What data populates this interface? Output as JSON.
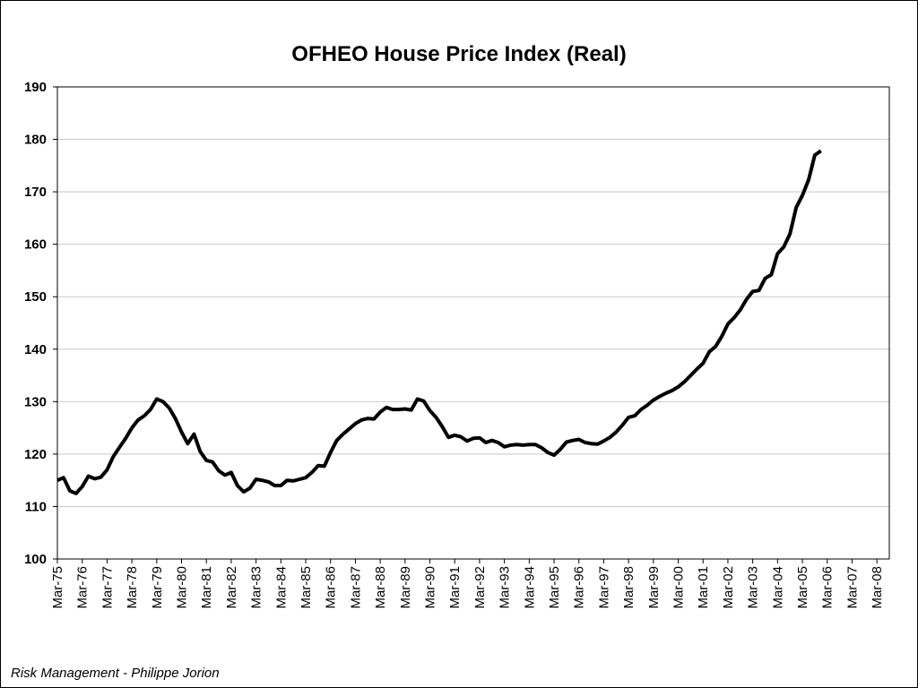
{
  "footer": "Risk Management - Philippe Jorion",
  "chart_data": {
    "type": "line",
    "title": "OFHEO House Price Index (Real)",
    "xlabel": "",
    "ylabel": "",
    "ylim": [
      100,
      190
    ],
    "yticks": [
      100,
      110,
      120,
      130,
      140,
      150,
      160,
      170,
      180,
      190
    ],
    "xticks": [
      "Mar-75",
      "Mar-76",
      "Mar-77",
      "Mar-78",
      "Mar-79",
      "Mar-80",
      "Mar-81",
      "Mar-82",
      "Mar-83",
      "Mar-84",
      "Mar-85",
      "Mar-86",
      "Mar-87",
      "Mar-88",
      "Mar-89",
      "Mar-90",
      "Mar-91",
      "Mar-92",
      "Mar-93",
      "Mar-94",
      "Mar-95",
      "Mar-96",
      "Mar-97",
      "Mar-98",
      "Mar-99",
      "Mar-00",
      "Mar-01",
      "Mar-02",
      "Mar-03",
      "Mar-04",
      "Mar-05",
      "Mar-06",
      "Mar-07",
      "Mar-08"
    ],
    "grid": "horizontal",
    "line_color": "#000000",
    "series": [
      {
        "name": "",
        "start": "Mar-75",
        "frequency": "quarterly",
        "values": [
          115.0,
          115.5,
          113.0,
          112.5,
          113.8,
          115.8,
          115.3,
          115.6,
          117.0,
          119.5,
          121.3,
          123.0,
          125.0,
          126.5,
          127.3,
          128.5,
          130.5,
          130.0,
          128.8,
          126.8,
          124.2,
          122.0,
          123.8,
          120.5,
          118.8,
          118.5,
          116.8,
          116.0,
          116.5,
          114.0,
          112.8,
          113.5,
          115.2,
          115.0,
          114.7,
          114.0,
          114.0,
          115.0,
          114.9,
          115.2,
          115.5,
          116.5,
          117.8,
          117.7,
          120.3,
          122.6,
          123.8,
          124.8,
          125.8,
          126.5,
          126.8,
          126.7,
          128.0,
          128.9,
          128.5,
          128.5,
          128.6,
          128.4,
          130.5,
          130.1,
          128.3,
          127.0,
          125.2,
          123.2,
          123.6,
          123.3,
          122.5,
          123.0,
          123.1,
          122.2,
          122.6,
          122.2,
          121.4,
          121.7,
          121.8,
          121.7,
          121.8,
          121.8,
          121.2,
          120.3,
          119.8,
          120.9,
          122.3,
          122.6,
          122.8,
          122.2,
          122.0,
          121.9,
          122.5,
          123.2,
          124.2,
          125.5,
          127.0,
          127.3,
          128.5,
          129.3,
          130.3,
          131.0,
          131.6,
          132.1,
          132.8,
          133.8,
          135.0,
          136.2,
          137.3,
          139.5,
          140.5,
          142.4,
          144.8,
          146.0,
          147.5,
          149.5,
          151.0,
          151.2,
          153.5,
          154.2,
          158.2,
          159.5,
          162.0,
          167.0,
          169.3,
          172.3,
          177.0,
          177.8
        ]
      }
    ]
  }
}
